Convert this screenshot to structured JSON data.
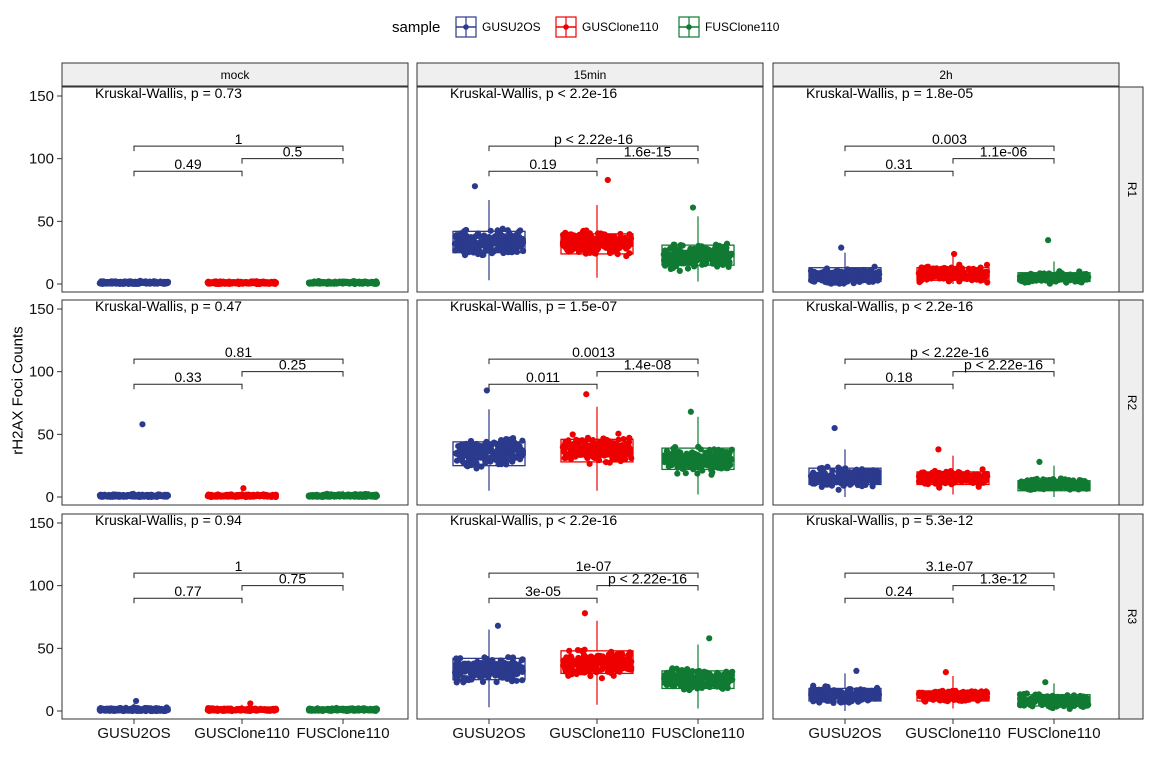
{
  "chart_data": {
    "type": "boxplot-jitter-faceted",
    "ylabel": "rH2AX Foci Counts",
    "xlabel": "",
    "ylim": [
      0,
      150
    ],
    "yticks": [
      0,
      50,
      100,
      150
    ],
    "legend": {
      "title": "sample",
      "position": "top"
    },
    "categories": [
      "GUSU2OS",
      "GUSClone110",
      "FUSClone110"
    ],
    "colors": {
      "GUSU2OS": "#2B3A8C",
      "GUSClone110": "#EE0000",
      "FUSClone110": "#107A33"
    },
    "col_facets": [
      "mock",
      "15min",
      "2h"
    ],
    "row_facets": [
      "R1",
      "R2",
      "R3"
    ],
    "panels": [
      {
        "row": "R1",
        "col": "mock",
        "kruskal": "Kruskal-Wallis, p = 0.73",
        "comparisons": {
          "a_b": "0.49",
          "b_c": "0.5",
          "a_c": "1"
        },
        "boxes": [
          {
            "q1": 0,
            "median": 1,
            "q3": 2,
            "lo": 0,
            "hi": 4,
            "max": 4
          },
          {
            "q1": 0,
            "median": 1,
            "q3": 2,
            "lo": 0,
            "hi": 4,
            "max": 4
          },
          {
            "q1": 0,
            "median": 1,
            "q3": 2,
            "lo": 0,
            "hi": 4,
            "max": 4
          }
        ]
      },
      {
        "row": "R1",
        "col": "15min",
        "kruskal": "Kruskal-Wallis, p < 2.2e-16",
        "comparisons": {
          "a_b": "0.19",
          "b_c": "1.6e-15",
          "a_c": "p < 2.22e-16"
        },
        "boxes": [
          {
            "q1": 25,
            "median": 33,
            "q3": 42,
            "lo": 3,
            "hi": 67,
            "max": 78
          },
          {
            "q1": 24,
            "median": 33,
            "q3": 40,
            "lo": 5,
            "hi": 63,
            "max": 83
          },
          {
            "q1": 15,
            "median": 22,
            "q3": 31,
            "lo": 2,
            "hi": 54,
            "max": 61
          }
        ]
      },
      {
        "row": "R1",
        "col": "2h",
        "kruskal": "Kruskal-Wallis, p = 1.8e-05",
        "comparisons": {
          "a_b": "0.31",
          "b_c": "1.1e-06",
          "a_c": "0.003"
        },
        "boxes": [
          {
            "q1": 2,
            "median": 6,
            "q3": 13,
            "lo": 0,
            "hi": 25,
            "max": 29
          },
          {
            "q1": 3,
            "median": 8,
            "q3": 13,
            "lo": 0,
            "hi": 22,
            "max": 24
          },
          {
            "q1": 2,
            "median": 5,
            "q3": 9,
            "lo": 0,
            "hi": 18,
            "max": 35
          }
        ]
      },
      {
        "row": "R2",
        "col": "mock",
        "kruskal": "Kruskal-Wallis, p = 0.47",
        "comparisons": {
          "a_b": "0.33",
          "b_c": "0.25",
          "a_c": "0.81"
        },
        "boxes": [
          {
            "q1": 0,
            "median": 1,
            "q3": 2,
            "lo": 0,
            "hi": 5,
            "max": 58
          },
          {
            "q1": 0,
            "median": 1,
            "q3": 2,
            "lo": 0,
            "hi": 5,
            "max": 7
          },
          {
            "q1": 0,
            "median": 1,
            "q3": 2,
            "lo": 0,
            "hi": 5,
            "max": 5
          }
        ]
      },
      {
        "row": "R2",
        "col": "15min",
        "kruskal": "Kruskal-Wallis, p = 1.5e-07",
        "comparisons": {
          "a_b": "0.011",
          "b_c": "1.4e-08",
          "a_c": "0.0013"
        },
        "boxes": [
          {
            "q1": 25,
            "median": 36,
            "q3": 44,
            "lo": 5,
            "hi": 70,
            "max": 85
          },
          {
            "q1": 28,
            "median": 38,
            "q3": 46,
            "lo": 5,
            "hi": 72,
            "max": 82
          },
          {
            "q1": 22,
            "median": 30,
            "q3": 39,
            "lo": 2,
            "hi": 64,
            "max": 68
          }
        ]
      },
      {
        "row": "R2",
        "col": "2h",
        "kruskal": "Kruskal-Wallis, p < 2.2e-16",
        "comparisons": {
          "a_b": "0.18",
          "b_c": "p < 2.22e-16",
          "a_c": "p < 2.22e-16"
        },
        "boxes": [
          {
            "q1": 10,
            "median": 16,
            "q3": 23,
            "lo": 0,
            "hi": 38,
            "max": 55
          },
          {
            "q1": 10,
            "median": 15,
            "q3": 20,
            "lo": 2,
            "hi": 33,
            "max": 38
          },
          {
            "q1": 5,
            "median": 10,
            "q3": 13,
            "lo": 0,
            "hi": 25,
            "max": 28
          }
        ]
      },
      {
        "row": "R3",
        "col": "mock",
        "kruskal": "Kruskal-Wallis, p = 0.94",
        "comparisons": {
          "a_b": "0.77",
          "b_c": "0.75",
          "a_c": "1"
        },
        "boxes": [
          {
            "q1": 0,
            "median": 1,
            "q3": 3,
            "lo": 0,
            "hi": 6,
            "max": 8
          },
          {
            "q1": 0,
            "median": 1,
            "q3": 2,
            "lo": 0,
            "hi": 5,
            "max": 6
          },
          {
            "q1": 0,
            "median": 1,
            "q3": 2,
            "lo": 0,
            "hi": 4,
            "max": 4
          }
        ]
      },
      {
        "row": "R3",
        "col": "15min",
        "kruskal": "Kruskal-Wallis, p < 2.2e-16",
        "comparisons": {
          "a_b": "3e-05",
          "b_c": "p < 2.22e-16",
          "a_c": "1e-07"
        },
        "boxes": [
          {
            "q1": 25,
            "median": 33,
            "q3": 42,
            "lo": 3,
            "hi": 65,
            "max": 68
          },
          {
            "q1": 30,
            "median": 38,
            "q3": 48,
            "lo": 5,
            "hi": 72,
            "max": 78
          },
          {
            "q1": 18,
            "median": 25,
            "q3": 32,
            "lo": 2,
            "hi": 53,
            "max": 58
          }
        ]
      },
      {
        "row": "R3",
        "col": "2h",
        "kruskal": "Kruskal-Wallis, p = 5.3e-12",
        "comparisons": {
          "a_b": "0.24",
          "b_c": "1.3e-12",
          "a_c": "3.1e-07"
        },
        "boxes": [
          {
            "q1": 8,
            "median": 13,
            "q3": 18,
            "lo": 0,
            "hi": 30,
            "max": 32
          },
          {
            "q1": 8,
            "median": 12,
            "q3": 16,
            "lo": 2,
            "hi": 28,
            "max": 31
          },
          {
            "q1": 4,
            "median": 8,
            "q3": 13,
            "lo": 0,
            "hi": 22,
            "max": 23
          }
        ]
      }
    ]
  }
}
